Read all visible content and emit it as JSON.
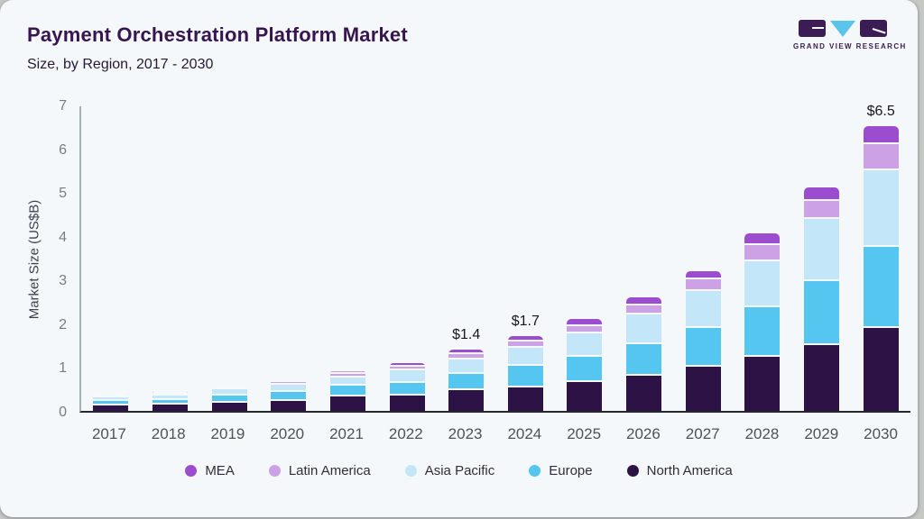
{
  "header": {
    "title": "Payment Orchestration Platform Market",
    "subtitle": "Size, by Region, 2017 - 2030"
  },
  "logo": {
    "brand": "GRAND VIEW RESEARCH",
    "block_color": "#3b1c55",
    "triangle_color": "#5bc4ea"
  },
  "chart_data": {
    "type": "bar",
    "stacked": true,
    "title": "Payment Orchestration Platform Market Size, by Region, 2017 - 2030",
    "xlabel": "",
    "ylabel": "Market Size (US$B)",
    "ylim": [
      0,
      7
    ],
    "yticks": [
      0,
      1,
      2,
      3,
      4,
      5,
      6,
      7
    ],
    "grid": false,
    "legend_position": "bottom",
    "categories": [
      "2017",
      "2018",
      "2019",
      "2020",
      "2021",
      "2022",
      "2023",
      "2024",
      "2025",
      "2026",
      "2027",
      "2028",
      "2029",
      "2030"
    ],
    "series": [
      {
        "name": "North America",
        "color": "#2d1245",
        "values": [
          0.12,
          0.14,
          0.19,
          0.23,
          0.32,
          0.36,
          0.47,
          0.53,
          0.65,
          0.81,
          1.0,
          1.23,
          1.51,
          1.9
        ]
      },
      {
        "name": "Europe",
        "color": "#55c6f0",
        "values": [
          0.1,
          0.11,
          0.17,
          0.2,
          0.25,
          0.28,
          0.38,
          0.5,
          0.59,
          0.71,
          0.9,
          1.14,
          1.45,
          1.85
        ]
      },
      {
        "name": "Asia Pacific",
        "color": "#c3e7f8",
        "values": [
          0.09,
          0.11,
          0.13,
          0.16,
          0.2,
          0.28,
          0.33,
          0.41,
          0.53,
          0.68,
          0.83,
          1.05,
          1.42,
          1.75
        ]
      },
      {
        "name": "Latin America",
        "color": "#cda1e6",
        "values": [
          0.03,
          0.03,
          0.04,
          0.06,
          0.08,
          0.09,
          0.11,
          0.14,
          0.17,
          0.21,
          0.28,
          0.37,
          0.42,
          0.6
        ]
      },
      {
        "name": "MEA",
        "color": "#9c4ccf",
        "values": [
          0.01,
          0.02,
          0.02,
          0.03,
          0.05,
          0.09,
          0.11,
          0.12,
          0.16,
          0.19,
          0.19,
          0.26,
          0.3,
          0.4
        ]
      }
    ],
    "annotations": [
      {
        "category": "2023",
        "text": "$1.4"
      },
      {
        "category": "2024",
        "text": "$1.7"
      },
      {
        "category": "2030",
        "text": "$6.5"
      }
    ]
  },
  "legend": {
    "items": [
      {
        "label": "MEA",
        "color": "#9c4ccf"
      },
      {
        "label": "Latin America",
        "color": "#cda1e6"
      },
      {
        "label": "Asia Pacific",
        "color": "#c3e7f8"
      },
      {
        "label": "Europe",
        "color": "#55c6f0"
      },
      {
        "label": "North America",
        "color": "#2d1245"
      }
    ]
  }
}
